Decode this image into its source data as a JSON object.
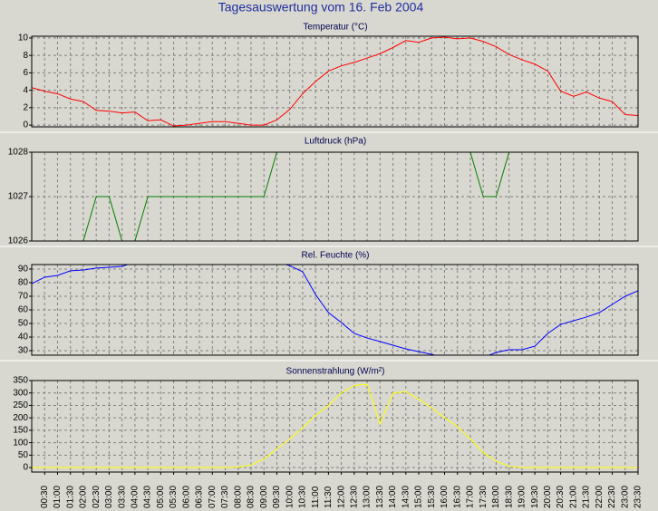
{
  "title": "Tagesauswertung vom 16. Feb 2004",
  "chart_data": [
    {
      "type": "line",
      "title": "Temperatur (°C)",
      "series": [
        {
          "color": "#ff0000",
          "values": [
            4.3,
            3.9,
            3.6,
            3.0,
            2.7,
            1.7,
            1.6,
            1.4,
            1.5,
            0.5,
            0.6,
            -0.1,
            0.0,
            0.2,
            0.4,
            0.4,
            0.2,
            0.0,
            0.0,
            0.6,
            1.8,
            3.6,
            5.0,
            6.2,
            6.8,
            7.2,
            7.7,
            8.2,
            8.9,
            9.7,
            9.5,
            10.0,
            10.1,
            9.9,
            10.0,
            9.6,
            9.0,
            8.1,
            7.5,
            7.0,
            6.2,
            3.9,
            3.3,
            3.8,
            3.1,
            2.7,
            1.2,
            1.1
          ]
        }
      ],
      "ylim": [
        -0.2,
        10.2
      ],
      "yticks": [
        0,
        2,
        4,
        6,
        8,
        10
      ],
      "grid": true
    },
    {
      "type": "line",
      "title": "Luftdruck (hPa)",
      "series": [
        {
          "color": "#008000",
          "values": [
            1026,
            1026,
            1026,
            1026,
            1026,
            1027,
            1027,
            1026,
            1026,
            1027,
            1027,
            1027,
            1027,
            1027,
            1027,
            1027,
            1027,
            1027,
            1027,
            1028,
            1028,
            1028,
            1028,
            1028,
            1028,
            1028,
            1028,
            1028,
            1028,
            1028,
            1028,
            1028,
            1028,
            1028,
            1028,
            1027,
            1027,
            1028,
            1028,
            1028,
            1028,
            1028,
            1028,
            1028,
            1028,
            1028,
            1028,
            1028
          ]
        }
      ],
      "ylim": [
        1026,
        1028
      ],
      "yticks": [
        1026,
        1027,
        1028
      ],
      "grid": true
    },
    {
      "type": "line",
      "title": "Rel. Feuchte (%)",
      "series": [
        {
          "color": "#0000ff",
          "values": [
            79.3,
            84,
            85.3,
            88.7,
            89.3,
            90.7,
            91.3,
            92,
            95,
            95,
            95,
            95,
            95,
            95,
            95,
            95,
            95,
            95,
            95,
            95,
            92.5,
            88,
            71.3,
            58,
            50.7,
            42.7,
            39.3,
            36.7,
            34,
            31.3,
            29.3,
            27.3,
            25,
            25,
            25,
            25,
            28.7,
            30.7,
            30.7,
            33.3,
            42.7,
            49.3,
            52,
            54.7,
            58,
            64,
            70,
            74
          ]
        }
      ],
      "ylim": [
        26.7,
        93.3
      ],
      "yticks": [
        30,
        40,
        50,
        60,
        70,
        80,
        90
      ],
      "grid": true
    },
    {
      "type": "line",
      "title": "Sonnenstrahlung (W/m²)",
      "categories": [
        null,
        "00:30",
        "01:00",
        "01:30",
        "02:00",
        "02:30",
        "03:00",
        "03:30",
        "04:00",
        "04:30",
        "05:00",
        "05:30",
        "06:00",
        "06:30",
        "07:00",
        "07:30",
        "08:00",
        "08:30",
        "09:00",
        "09:30",
        "10:00",
        "10:30",
        "11:00",
        "11:30",
        "12:00",
        "12:30",
        "13:00",
        "13:30",
        "14:00",
        "14:30",
        "15:00",
        "15:30",
        "16:00",
        "16:30",
        "17:00",
        "17:30",
        "18:00",
        "18:30",
        "19:00",
        "19:30",
        "20:00",
        "20:30",
        "21:00",
        "21:30",
        "22:00",
        "22:30",
        "23:00",
        "23:30"
      ],
      "series": [
        {
          "color": "#ffff00",
          "values": [
            0,
            0,
            0,
            0,
            0,
            0,
            0,
            0,
            0,
            0,
            0,
            0,
            0,
            0,
            0,
            0,
            2,
            10,
            35,
            75,
            115,
            160,
            210,
            250,
            300,
            330,
            335,
            175,
            300,
            305,
            275,
            240,
            200,
            165,
            115,
            60,
            25,
            5,
            0,
            0,
            0,
            0,
            0,
            0,
            0,
            0,
            0,
            0
          ]
        }
      ],
      "ylim": [
        -18,
        350
      ],
      "yticks": [
        0,
        50,
        100,
        150,
        200,
        250,
        300,
        350
      ],
      "grid": true
    }
  ]
}
